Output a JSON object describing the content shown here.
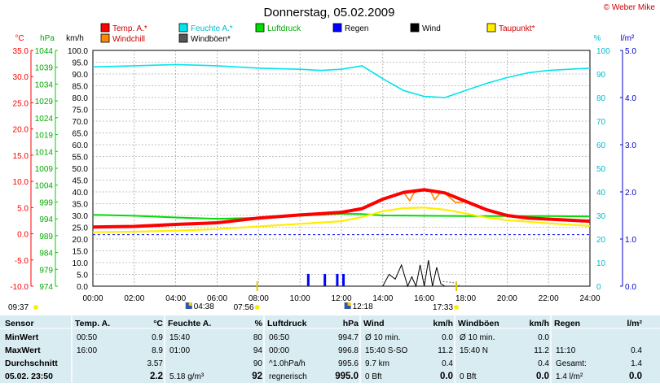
{
  "chart_data": {
    "type": "line",
    "title": "Donnerstag, 05.02.2009",
    "credit": "© Weber Mike",
    "x_ticks": [
      "00:00",
      "02:00",
      "04:00",
      "06:00",
      "08:00",
      "10:00",
      "12:00",
      "14:00",
      "16:00",
      "18:00",
      "20:00",
      "22:00",
      "24:00"
    ],
    "axis_units": {
      "temp": "°C",
      "pressure": "hPa",
      "wind": "km/h",
      "humidity": "%",
      "rain": "l/m²"
    },
    "temp_ticks": [
      "35.0",
      "30.0",
      "25.0",
      "20.0",
      "15.0",
      "10.0",
      "5.0",
      "0.0",
      "-5.0",
      "-10.0"
    ],
    "pressure_ticks": [
      "1044",
      "1039",
      "1034",
      "1029",
      "1024",
      "1019",
      "1014",
      "1009",
      "1004",
      "999",
      "994",
      "989",
      "984",
      "979",
      "974"
    ],
    "wind_ticks": [
      "100.0",
      "95.0",
      "90.0",
      "85.0",
      "80.0",
      "75.0",
      "70.0",
      "65.0",
      "60.0",
      "55.0",
      "50.0",
      "45.0",
      "40.0",
      "35.0",
      "30.0",
      "25.0",
      "20.0",
      "15.0",
      "10.0",
      "5.0",
      "0.0"
    ],
    "humidity_ticks": [
      "100",
      "90",
      "80",
      "70",
      "60",
      "50",
      "40",
      "30",
      "20",
      "10",
      "0"
    ],
    "rain_ticks": [
      "5.0",
      "4.0",
      "3.0",
      "2.0",
      "1.0",
      "0.0"
    ],
    "legend": [
      {
        "label": "Temp. A.*",
        "color": "#ff0000"
      },
      {
        "label": "Feuchte A.*",
        "color": "#00e5ee"
      },
      {
        "label": "Luftdruck",
        "color": "#00dd00"
      },
      {
        "label": "Regen",
        "color": "#0000ff"
      },
      {
        "label": "Wind",
        "color": "#000000"
      },
      {
        "label": "Taupunkt*",
        "color": "#ffee00"
      },
      {
        "label": "Windchill",
        "color": "#ff8800"
      },
      {
        "label": "Windböen*",
        "color": "#555555"
      }
    ],
    "series": [
      {
        "name": "Temp. A.*",
        "axis": "temp",
        "color": "#ff0000",
        "x": [
          0,
          2,
          4,
          6,
          8,
          10,
          12,
          13,
          14,
          15,
          16,
          17,
          18,
          19,
          20,
          21,
          22,
          24
        ],
        "y": [
          1.3,
          1.4,
          1.8,
          2.1,
          3.0,
          3.6,
          4.1,
          4.8,
          6.6,
          7.9,
          8.4,
          7.8,
          6.2,
          4.6,
          3.5,
          3.0,
          2.8,
          2.4
        ]
      },
      {
        "name": "Feuchte A.*",
        "axis": "humidity",
        "color": "#00e5ee",
        "x": [
          0,
          2,
          4,
          6,
          8,
          10,
          11,
          12,
          13,
          14,
          15,
          16,
          17,
          18,
          19,
          20,
          21,
          22,
          23,
          24
        ],
        "y": [
          93,
          93.5,
          94,
          93.5,
          92.5,
          92,
          91.5,
          92,
          93.5,
          88,
          83,
          80.5,
          80,
          83,
          86,
          88.5,
          90.5,
          91.5,
          92,
          92.5
        ]
      },
      {
        "name": "Luftdruck",
        "axis": "pressure",
        "color": "#00dd00",
        "x": [
          0,
          2,
          4,
          6,
          8,
          10,
          12,
          13,
          14,
          16,
          18,
          20,
          22,
          24
        ],
        "y": [
          995.2,
          994.9,
          994.4,
          994.0,
          994.3,
          994.9,
          995.5,
          995.4,
          995.0,
          994.9,
          994.8,
          994.8,
          994.8,
          994.7
        ]
      },
      {
        "name": "Taupunkt*",
        "axis": "temp",
        "color": "#ffee00",
        "x": [
          0,
          2,
          4,
          6,
          8,
          10,
          12,
          13,
          14,
          15,
          16,
          17,
          18,
          19,
          20,
          22,
          24
        ],
        "y": [
          0.3,
          0.4,
          0.6,
          0.9,
          1.4,
          1.9,
          2.4,
          3.2,
          4.3,
          4.9,
          5.0,
          4.6,
          3.9,
          3.1,
          2.6,
          2.0,
          1.5
        ]
      },
      {
        "name": "Windchill",
        "axis": "temp",
        "color": "#ff8800",
        "x": [
          12,
          13,
          14,
          15,
          15.3,
          15.5,
          15.8,
          16.3,
          16.5,
          16.8,
          17,
          17.5,
          18,
          19
        ],
        "y": [
          4.1,
          4.8,
          6.6,
          7.9,
          6.3,
          7.8,
          8.3,
          8.2,
          6.5,
          8.0,
          7.7,
          6.0,
          6.1,
          4.6
        ]
      }
    ],
    "dashed_line": {
      "name": "Luftdruck",
      "axis": "pressure",
      "value": 989.3,
      "color": "#0000ff"
    },
    "rain_bars": {
      "axis": "rain",
      "x": [
        10.4,
        11.2,
        11.8,
        12.1
      ],
      "y": [
        0.26,
        0.26,
        0.26,
        0.26
      ]
    },
    "wind": {
      "axis": "wind",
      "x": [
        14.0,
        14.3,
        14.6,
        14.9,
        15.2,
        15.4,
        15.6,
        15.8,
        16.0,
        16.2,
        16.4,
        16.6,
        16.8,
        17.0
      ],
      "y": [
        0,
        5,
        3,
        9,
        0,
        4,
        0,
        9,
        0,
        11,
        0,
        8,
        1,
        0
      ]
    },
    "wind_gusts_dotted": {
      "axis": "wind",
      "x": [
        16.9,
        17.4,
        17.7
      ],
      "y": [
        2,
        1.5,
        0.2
      ]
    },
    "sun": {
      "sunrise": "07:56",
      "sunset": "17:33",
      "moon_left": "04:38",
      "moon_right": "12:18",
      "day_start": "09:37"
    }
  },
  "table": {
    "columns": [
      {
        "head": "Sensor",
        "unit": ""
      },
      {
        "head": "Temp. A.",
        "unit": "°C"
      },
      {
        "head": "Feuchte A.",
        "unit": "%"
      },
      {
        "head": "Luftdruck",
        "unit": "hPa"
      },
      {
        "head": "Wind",
        "unit": "km/h"
      },
      {
        "head": "Windböen",
        "unit": "km/h"
      },
      {
        "head": "Regen",
        "unit": "l/m²"
      }
    ],
    "rows": [
      {
        "label": "MinWert",
        "cells": [
          [
            "00:50",
            "0.9"
          ],
          [
            "15:40",
            "80"
          ],
          [
            "06:50",
            "994.7"
          ],
          [
            "Ø 10 min.",
            "0.0"
          ],
          [
            "Ø 10 min.",
            "0.0"
          ],
          [
            "",
            ""
          ]
        ]
      },
      {
        "label": "MaxWert",
        "cells": [
          [
            "16:00",
            "8.9"
          ],
          [
            "01:00",
            "94"
          ],
          [
            "00:00",
            "996.8"
          ],
          [
            "15:40 S-SO",
            "11.2"
          ],
          [
            "15:40 N",
            "11.2"
          ],
          [
            "11:10",
            "0.4"
          ]
        ]
      },
      {
        "label": "Durchschnitt",
        "cells": [
          [
            "",
            "3.57"
          ],
          [
            "",
            "90"
          ],
          [
            "^1.0hPa/h",
            "995.6"
          ],
          [
            "9.7 km",
            "0.4"
          ],
          [
            "",
            "0.4"
          ],
          [
            "Gesamt:",
            "1.4"
          ]
        ]
      },
      {
        "label": "05.02. 23:50",
        "cells": [
          [
            "",
            "2.2"
          ],
          [
            "5.18 g/m³",
            "92"
          ],
          [
            "regnerisch",
            "995.0"
          ],
          [
            "0 Bft",
            "0.0"
          ],
          [
            "0 Bft",
            "0.0"
          ],
          [
            "1.4 l/m²",
            "0.0"
          ]
        ]
      }
    ]
  }
}
